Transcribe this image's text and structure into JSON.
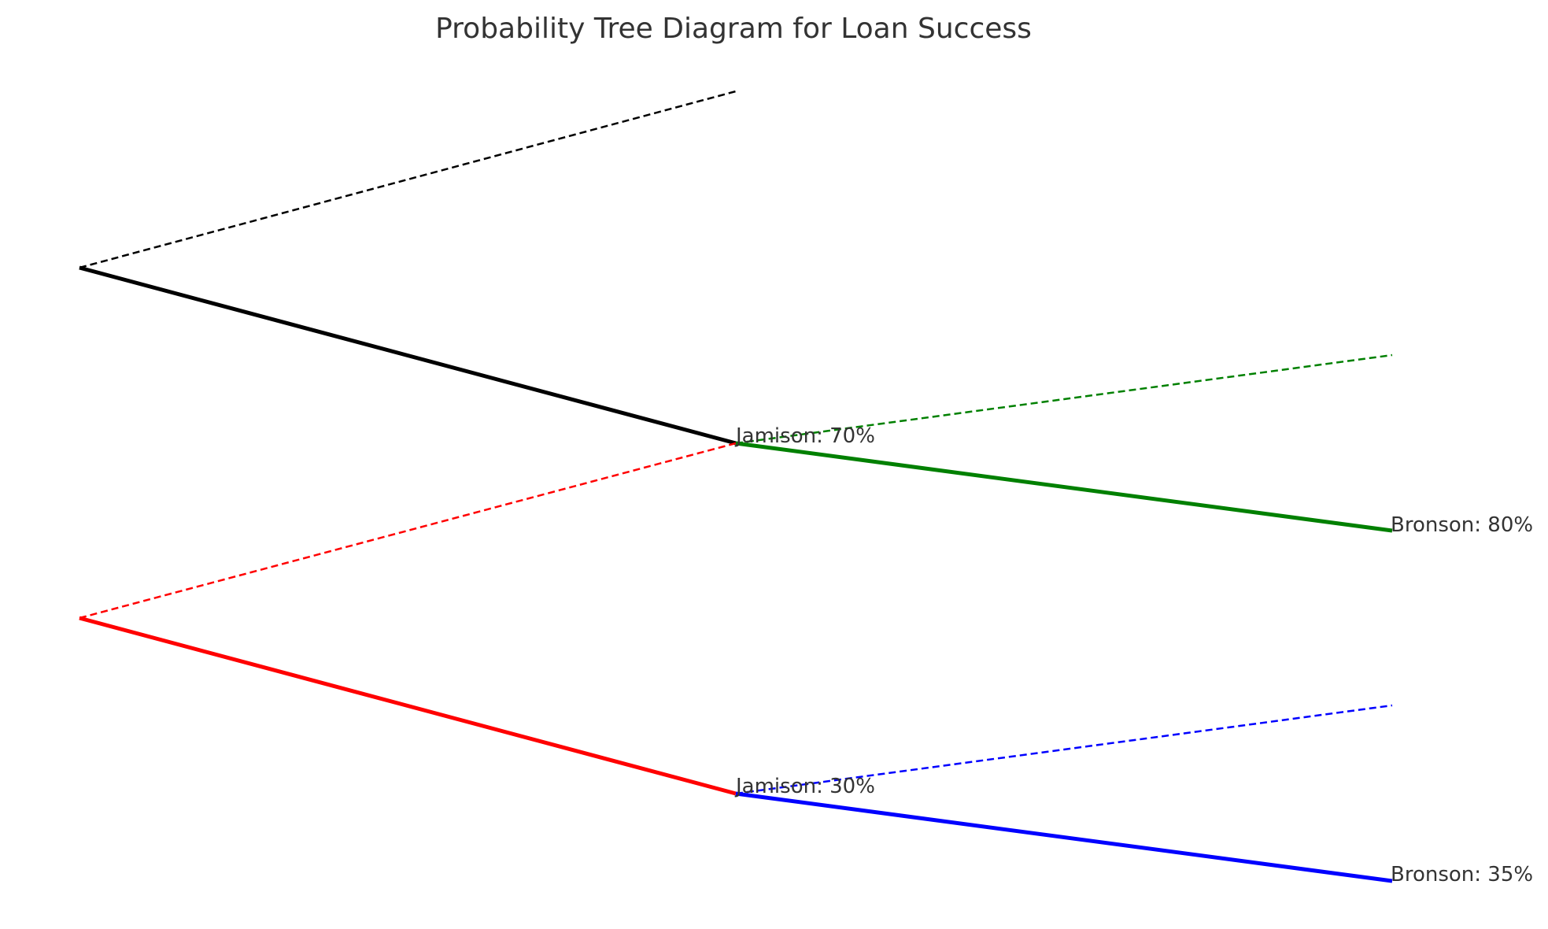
{
  "title": "Probability Tree Diagram for Loan Success",
  "colors": {
    "root_upper": "#000000",
    "root_lower": "#ff0000",
    "jamison_70_branch": "#008000",
    "jamison_30_branch": "#0000ff",
    "text": "#333333"
  },
  "labels": {
    "jamison_70": "Jamison: 70%",
    "jamison_30": "Jamison: 30%",
    "bronson_80": "Bronson: 80%",
    "bronson_35": "Bronson: 35%"
  }
}
